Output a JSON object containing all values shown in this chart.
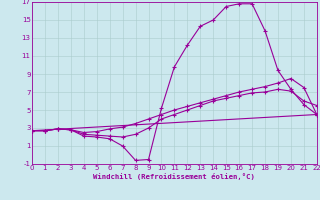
{
  "xlabel": "Windchill (Refroidissement éolien,°C)",
  "bg_color": "#cce8ee",
  "line_color": "#990099",
  "xlim": [
    0,
    22
  ],
  "ylim": [
    -1,
    17
  ],
  "xticks": [
    0,
    1,
    2,
    3,
    4,
    5,
    6,
    7,
    8,
    9,
    10,
    11,
    12,
    13,
    14,
    15,
    16,
    17,
    18,
    19,
    20,
    21,
    22
  ],
  "yticks": [
    -1,
    1,
    3,
    5,
    7,
    9,
    11,
    13,
    15,
    17
  ],
  "lines": [
    [
      0,
      2.7,
      1,
      2.7,
      2,
      2.9,
      3,
      2.8,
      4,
      2.1,
      5,
      2.0,
      6,
      1.8,
      7,
      1.0,
      8,
      -0.6,
      9,
      -0.5,
      10,
      5.2,
      11,
      9.8,
      12,
      12.2,
      13,
      14.3,
      14,
      15.0,
      15,
      16.5,
      16,
      16.8,
      17,
      16.8,
      18,
      13.8,
      19,
      9.4,
      20,
      7.3,
      21,
      5.6,
      22,
      4.5
    ],
    [
      0,
      2.7,
      1,
      2.7,
      2,
      2.9,
      3,
      2.8,
      4,
      2.3,
      5,
      2.2,
      6,
      2.1,
      7,
      2.0,
      8,
      2.3,
      9,
      3.0,
      10,
      4.0,
      11,
      4.5,
      12,
      5.0,
      13,
      5.5,
      14,
      6.0,
      15,
      6.3,
      16,
      6.6,
      17,
      6.9,
      18,
      7.0,
      19,
      7.3,
      20,
      7.1,
      21,
      6.0,
      22,
      5.5
    ],
    [
      0,
      2.7,
      22,
      4.5
    ],
    [
      0,
      2.7,
      1,
      2.7,
      2,
      2.9,
      3,
      2.8,
      4,
      2.5,
      5,
      2.6,
      6,
      2.9,
      7,
      3.1,
      8,
      3.5,
      9,
      4.0,
      10,
      4.5,
      11,
      5.0,
      12,
      5.4,
      13,
      5.8,
      14,
      6.2,
      15,
      6.6,
      16,
      7.0,
      17,
      7.3,
      18,
      7.6,
      19,
      8.0,
      20,
      8.5,
      21,
      7.5,
      22,
      4.5
    ]
  ],
  "label_fontsize": 5.2,
  "tick_fontsize": 5.0
}
